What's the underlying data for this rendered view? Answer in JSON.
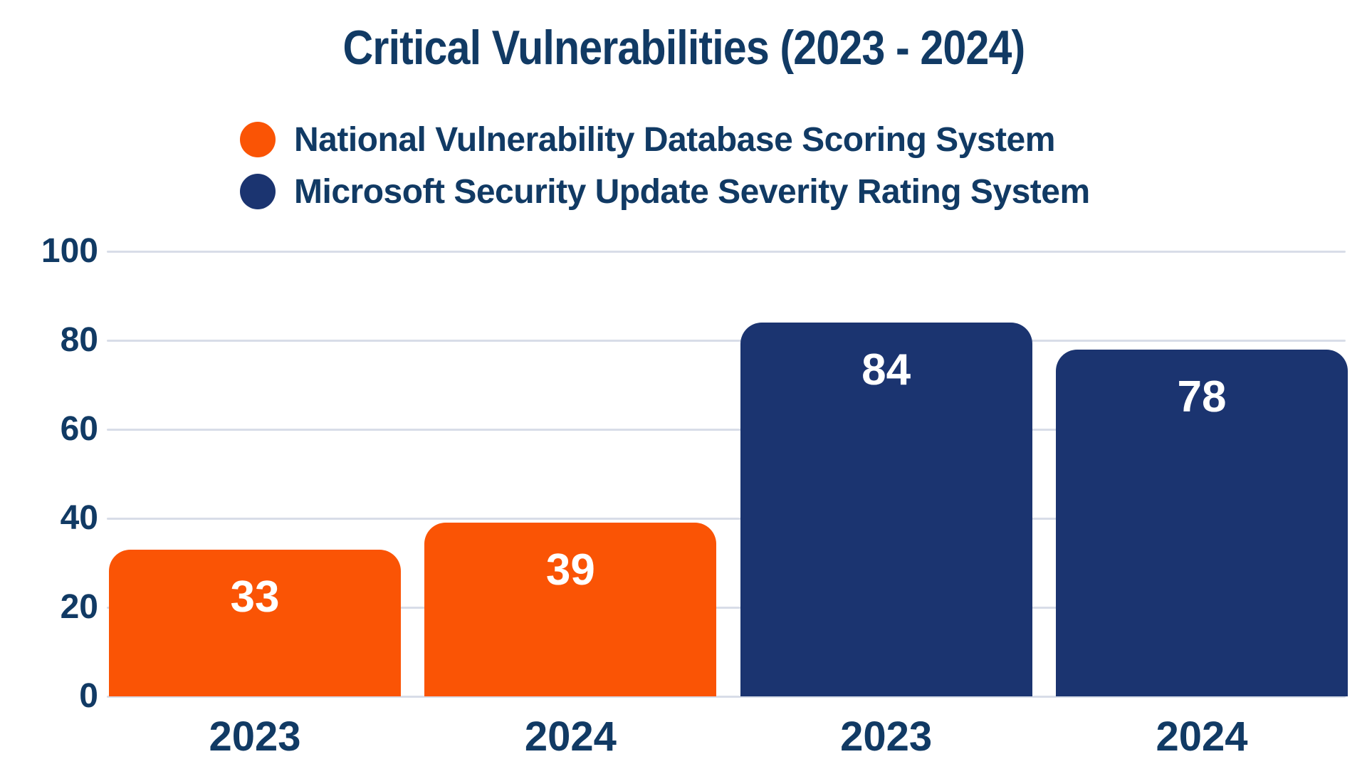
{
  "title": "Critical Vulnerabilities (2023 - 2024)",
  "colors": {
    "background": "#FFFFFF",
    "text_navy": "#113A64",
    "orange_series": "#FA5405",
    "navy_series": "#1B3470",
    "gridline": "#D8DDE8",
    "value_label": "#FFFFFF"
  },
  "chart_data": {
    "type": "bar",
    "title": "Critical Vulnerabilities (2023 - 2024)",
    "categories": [
      "2023",
      "2024"
    ],
    "series": [
      {
        "name": "National Vulnerability Database Scoring System",
        "color": "#FA5405",
        "values": [
          33,
          39
        ]
      },
      {
        "name": "Microsoft Security Update Severity Rating System",
        "color": "#1B3470",
        "values": [
          84,
          78
        ]
      }
    ],
    "bar_labels_on_axis": [
      "2023",
      "2024",
      "2023",
      "2024"
    ],
    "value_labels": true,
    "xlabel": "",
    "ylabel": "",
    "ylim": [
      0,
      100
    ],
    "yticks": [
      0,
      20,
      40,
      60,
      80,
      100
    ],
    "grid": true,
    "legend_position": "top-left"
  }
}
